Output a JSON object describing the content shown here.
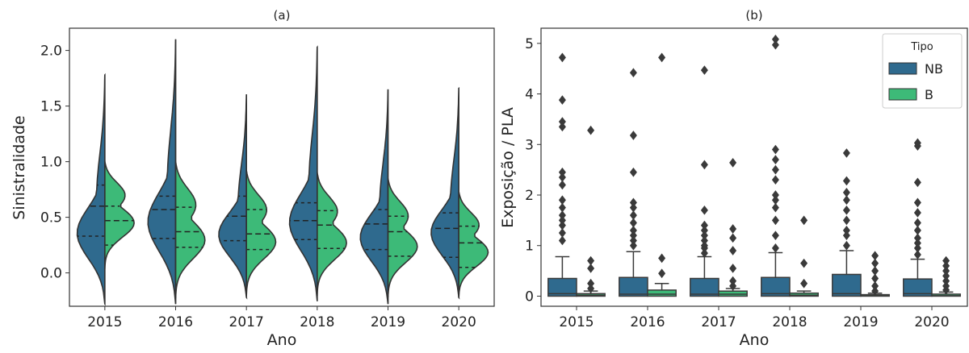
{
  "chart_data": [
    {
      "type": "violin",
      "title": "(a)",
      "xlabel": "Ano",
      "ylabel": "Sinistralidade",
      "ylim": [
        -0.3,
        2.2
      ],
      "yticks": [
        0.0,
        0.5,
        1.0,
        1.5,
        2.0
      ],
      "ytick_labels": [
        "0.0",
        "0.5",
        "1.0",
        "1.5",
        "2.0"
      ],
      "categories": [
        "2015",
        "2016",
        "2017",
        "2018",
        "2019",
        "2020"
      ],
      "split": true,
      "inner": "quartile",
      "series": [
        {
          "color": "#2f6a8e",
          "violins": [
            {
              "min": -0.28,
              "max": 1.78,
              "quartiles": [
                0.33,
                0.6,
                0.79
              ]
            },
            {
              "min": -0.28,
              "max": 2.1,
              "quartiles": [
                0.31,
                0.57,
                0.69
              ]
            },
            {
              "min": -0.22,
              "max": 1.6,
              "quartiles": [
                0.29,
                0.51,
                0.69
              ]
            },
            {
              "min": -0.25,
              "max": 2.03,
              "quartiles": [
                0.3,
                0.47,
                0.63
              ]
            },
            {
              "min": -0.28,
              "max": 1.65,
              "quartiles": [
                0.21,
                0.44,
                0.57
              ]
            },
            {
              "min": -0.22,
              "max": 1.66,
              "quartiles": [
                0.14,
                0.4,
                0.54
              ]
            }
          ]
        },
        {
          "color": "#3dba78",
          "violins": [
            {
              "min": 0.04,
              "max": 1.0,
              "quartiles": [
                0.25,
                0.47,
                0.6
              ]
            },
            {
              "min": -0.23,
              "max": 1.0,
              "quartiles": [
                0.23,
                0.37,
                0.59
              ]
            },
            {
              "min": -0.2,
              "max": 0.92,
              "quartiles": [
                0.21,
                0.35,
                0.57
              ]
            },
            {
              "min": -0.2,
              "max": 0.9,
              "quartiles": [
                0.22,
                0.43,
                0.56
              ]
            },
            {
              "min": -0.22,
              "max": 0.85,
              "quartiles": [
                0.15,
                0.37,
                0.51
              ]
            },
            {
              "min": -0.22,
              "max": 0.73,
              "quartiles": [
                0.05,
                0.27,
                0.42
              ]
            }
          ]
        }
      ]
    },
    {
      "type": "box",
      "title": "(b)",
      "xlabel": "Ano",
      "ylabel": "Exposição / PLA",
      "ylim": [
        -0.2,
        5.3
      ],
      "yticks": [
        0,
        1,
        2,
        3,
        4,
        5
      ],
      "ytick_labels": [
        "0",
        "1",
        "2",
        "3",
        "4",
        "5"
      ],
      "categories": [
        "2015",
        "2016",
        "2017",
        "2018",
        "2019",
        "2020"
      ],
      "legend": {
        "title": "Tipo",
        "position": "top-right"
      },
      "series": [
        {
          "name": "NB",
          "color": "#2f6a8e",
          "boxes": [
            {
              "q1": 0.0,
              "median": 0.05,
              "q3": 0.35,
              "whisker_low": 0.0,
              "whisker_high": 0.78,
              "outliers": [
                1.1,
                1.25,
                1.4,
                1.5,
                1.6,
                1.75,
                1.9,
                2.2,
                2.35,
                2.45,
                3.35,
                3.45,
                3.88,
                4.72
              ]
            },
            {
              "q1": 0.0,
              "median": 0.04,
              "q3": 0.37,
              "whisker_low": 0.0,
              "whisker_high": 0.88,
              "outliers": [
                1.0,
                1.1,
                1.2,
                1.3,
                1.45,
                1.6,
                1.75,
                1.85,
                2.45,
                3.18,
                4.42
              ]
            },
            {
              "q1": 0.0,
              "median": 0.04,
              "q3": 0.35,
              "whisker_low": 0.0,
              "whisker_high": 0.78,
              "outliers": [
                0.85,
                0.95,
                1.0,
                1.1,
                1.2,
                1.3,
                1.4,
                1.7,
                2.6,
                4.47
              ]
            },
            {
              "q1": 0.0,
              "median": 0.05,
              "q3": 0.37,
              "whisker_low": 0.0,
              "whisker_high": 0.86,
              "outliers": [
                0.95,
                1.2,
                1.5,
                1.75,
                1.9,
                2.0,
                2.3,
                2.5,
                2.7,
                2.9,
                4.97,
                5.08
              ]
            },
            {
              "q1": 0.0,
              "median": 0.05,
              "q3": 0.43,
              "whisker_low": 0.0,
              "whisker_high": 0.9,
              "outliers": [
                1.0,
                1.2,
                1.3,
                1.5,
                1.7,
                1.9,
                2.05,
                2.28,
                2.83
              ]
            },
            {
              "q1": 0.0,
              "median": 0.05,
              "q3": 0.34,
              "whisker_low": 0.0,
              "whisker_high": 0.73,
              "outliers": [
                0.82,
                0.95,
                1.05,
                1.15,
                1.3,
                1.45,
                1.65,
                1.85,
                2.25,
                2.97,
                3.03
              ]
            }
          ]
        },
        {
          "name": "B",
          "color": "#3dba78",
          "boxes": [
            {
              "q1": 0.0,
              "median": 0.02,
              "q3": 0.05,
              "whisker_low": 0.0,
              "whisker_high": 0.1,
              "outliers": [
                0.15,
                0.25,
                0.55,
                0.7,
                3.28
              ]
            },
            {
              "q1": 0.0,
              "median": 0.04,
              "q3": 0.12,
              "whisker_low": 0.0,
              "whisker_high": 0.25,
              "outliers": [
                0.45,
                0.75,
                4.72
              ]
            },
            {
              "q1": 0.0,
              "median": 0.04,
              "q3": 0.1,
              "whisker_low": 0.0,
              "whisker_high": 0.15,
              "outliers": [
                0.2,
                0.3,
                0.55,
                0.9,
                1.15,
                1.33,
                2.64
              ]
            },
            {
              "q1": 0.0,
              "median": 0.02,
              "q3": 0.06,
              "whisker_low": 0.0,
              "whisker_high": 0.1,
              "outliers": [
                0.25,
                0.65,
                1.5
              ]
            },
            {
              "q1": 0.0,
              "median": 0.01,
              "q3": 0.03,
              "whisker_low": 0.0,
              "whisker_high": 0.06,
              "outliers": [
                0.1,
                0.2,
                0.35,
                0.5,
                0.65,
                0.8
              ]
            },
            {
              "q1": 0.0,
              "median": 0.01,
              "q3": 0.04,
              "whisker_low": 0.0,
              "whisker_high": 0.08,
              "outliers": [
                0.12,
                0.2,
                0.3,
                0.4,
                0.5,
                0.6,
                0.7
              ]
            }
          ]
        }
      ]
    }
  ]
}
